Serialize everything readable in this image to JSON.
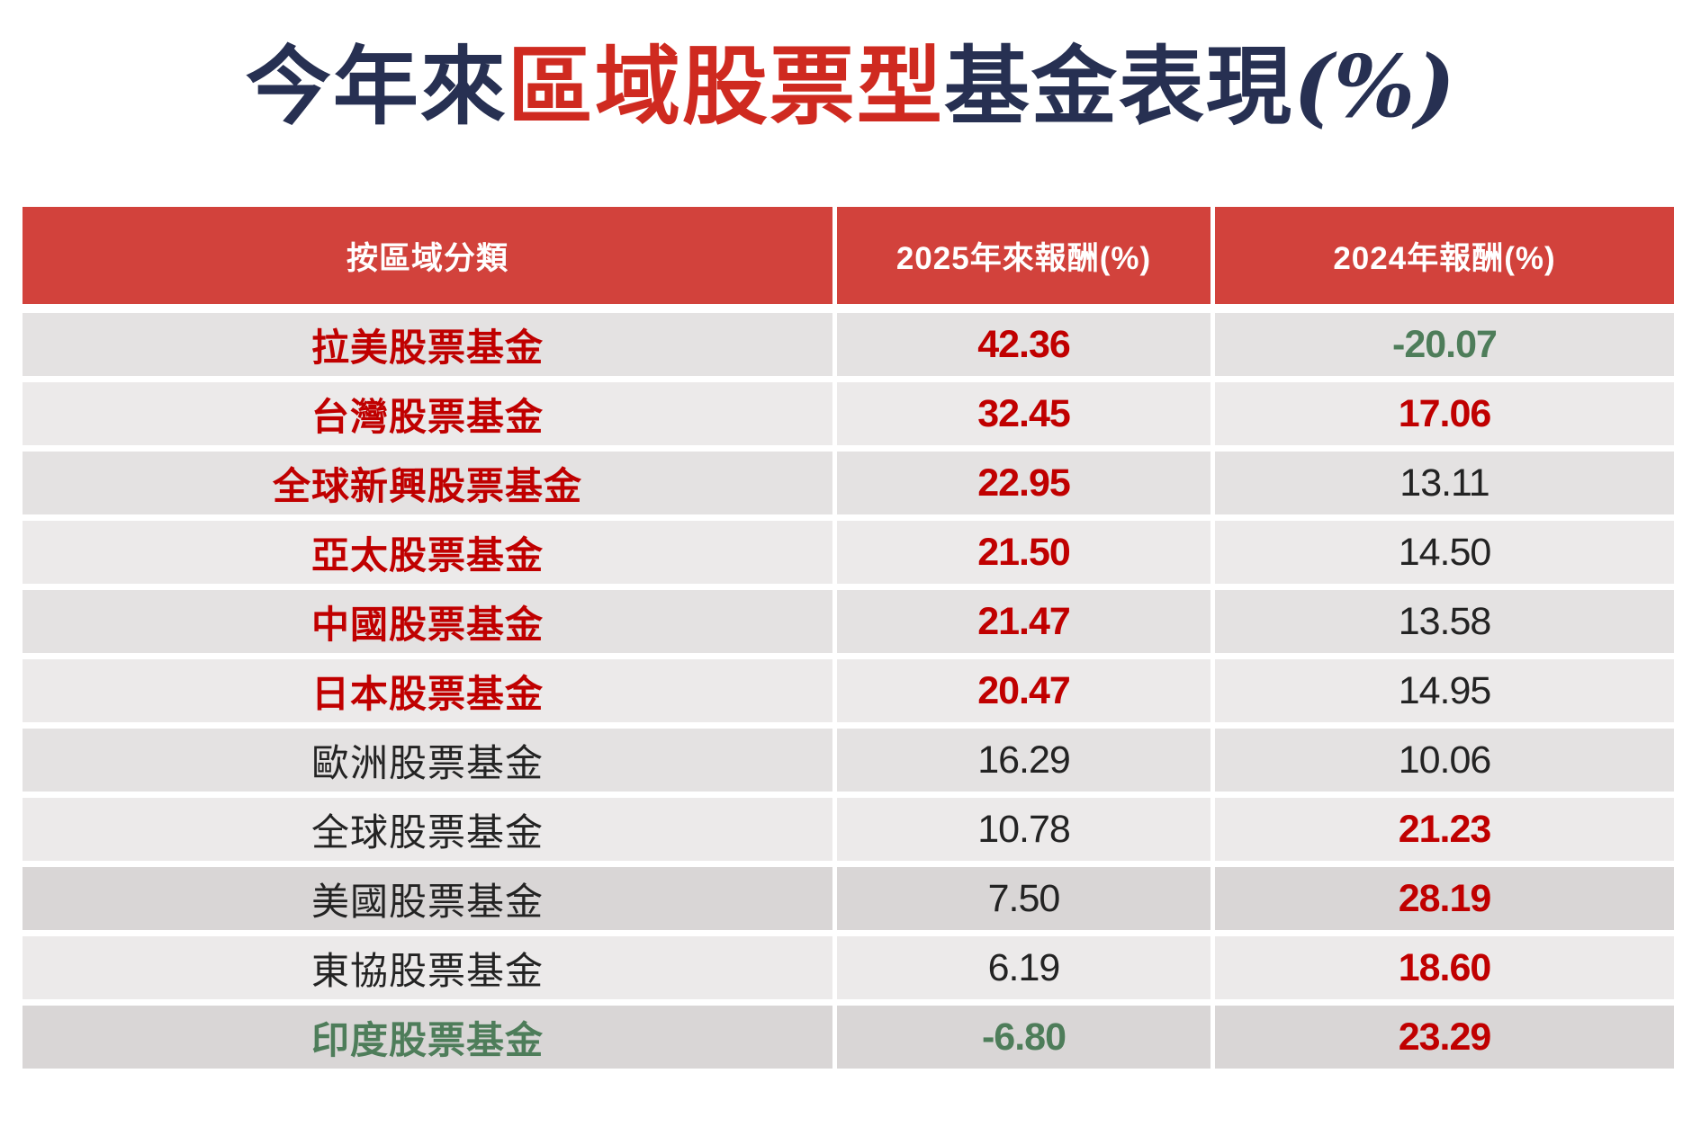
{
  "title": {
    "seg1": "今年來",
    "seg2": "區域股票型",
    "seg3": "基金表現",
    "seg4": "(%)"
  },
  "colors": {
    "title_navy": "#273052",
    "title_red": "#cf2a20",
    "header_bg": "#d2423c",
    "value_red": "#c00000",
    "value_green": "#4e7d5a",
    "value_black": "#232323",
    "row_light": "#eceaea",
    "row_mid": "#e4e2e2",
    "row_dark": "#d9d6d6"
  },
  "table": {
    "headers": [
      "按區域分類",
      "2025年來報酬(%)",
      "2024年報酬(%)"
    ],
    "rows": [
      {
        "name": "拉美股票基金",
        "y2025": "42.36",
        "y2024": "-20.07",
        "name_cl": "cl-red",
        "y2025_cl": "cl-red",
        "y2024_cl": "cl-green",
        "shade": "bg-a"
      },
      {
        "name": "台灣股票基金",
        "y2025": "32.45",
        "y2024": "17.06",
        "name_cl": "cl-red",
        "y2025_cl": "cl-red",
        "y2024_cl": "cl-red",
        "shade": "bg-b"
      },
      {
        "name": "全球新興股票基金",
        "y2025": "22.95",
        "y2024": "13.11",
        "name_cl": "cl-red",
        "y2025_cl": "cl-red",
        "y2024_cl": "cl-black",
        "shade": "bg-a"
      },
      {
        "name": "亞太股票基金",
        "y2025": "21.50",
        "y2024": "14.50",
        "name_cl": "cl-red",
        "y2025_cl": "cl-red",
        "y2024_cl": "cl-black",
        "shade": "bg-b"
      },
      {
        "name": "中國股票基金",
        "y2025": "21.47",
        "y2024": "13.58",
        "name_cl": "cl-red",
        "y2025_cl": "cl-red",
        "y2024_cl": "cl-black",
        "shade": "bg-a"
      },
      {
        "name": "日本股票基金",
        "y2025": "20.47",
        "y2024": "14.95",
        "name_cl": "cl-red",
        "y2025_cl": "cl-red",
        "y2024_cl": "cl-black",
        "shade": "bg-b"
      },
      {
        "name": "歐洲股票基金",
        "y2025": "16.29",
        "y2024": "10.06",
        "name_cl": "cl-black",
        "y2025_cl": "cl-black",
        "y2024_cl": "cl-black",
        "shade": "bg-a"
      },
      {
        "name": "全球股票基金",
        "y2025": "10.78",
        "y2024": "21.23",
        "name_cl": "cl-black",
        "y2025_cl": "cl-black",
        "y2024_cl": "cl-red",
        "shade": "bg-b"
      },
      {
        "name": "美國股票基金",
        "y2025": "7.50",
        "y2024": "28.19",
        "name_cl": "cl-black",
        "y2025_cl": "cl-black",
        "y2024_cl": "cl-red",
        "shade": "bg-c"
      },
      {
        "name": "東協股票基金",
        "y2025": "6.19",
        "y2024": "18.60",
        "name_cl": "cl-black",
        "y2025_cl": "cl-black",
        "y2024_cl": "cl-red",
        "shade": "bg-b"
      },
      {
        "name": "印度股票基金",
        "y2025": "-6.80",
        "y2024": "23.29",
        "name_cl": "cl-green",
        "y2025_cl": "cl-green",
        "y2024_cl": "cl-red",
        "shade": "bg-c"
      }
    ]
  },
  "chart_data": {
    "type": "table",
    "title": "今年來區域股票型基金表現(%)",
    "columns": [
      "按區域分類",
      "2025年來報酬(%)",
      "2024年報酬(%)"
    ],
    "rows": [
      [
        "拉美股票基金",
        42.36,
        -20.07
      ],
      [
        "台灣股票基金",
        32.45,
        17.06
      ],
      [
        "全球新興股票基金",
        22.95,
        13.11
      ],
      [
        "亞太股票基金",
        21.5,
        14.5
      ],
      [
        "中國股票基金",
        21.47,
        13.58
      ],
      [
        "日本股票基金",
        20.47,
        14.95
      ],
      [
        "歐洲股票基金",
        16.29,
        10.06
      ],
      [
        "全球股票基金",
        10.78,
        21.23
      ],
      [
        "美國股票基金",
        7.5,
        28.19
      ],
      [
        "東協股票基金",
        6.19,
        18.6
      ],
      [
        "印度股票基金",
        -6.8,
        23.29
      ]
    ]
  }
}
